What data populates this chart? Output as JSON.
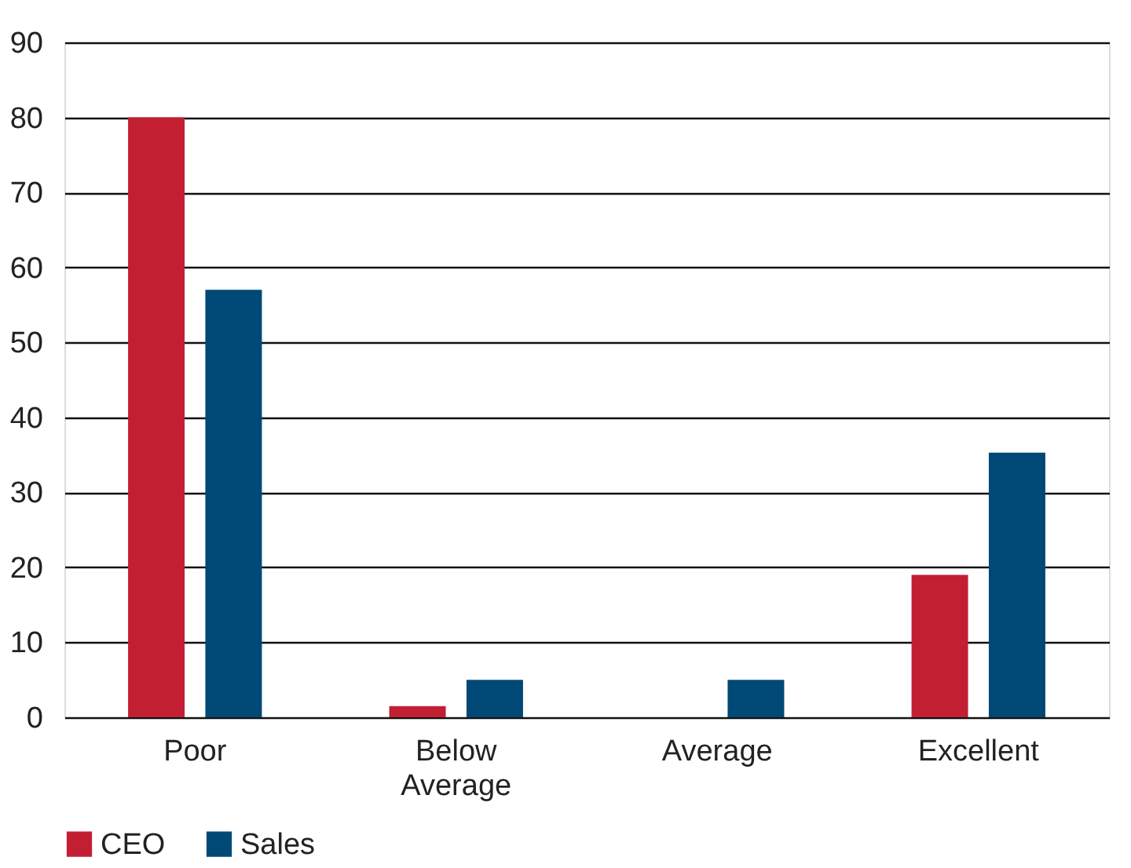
{
  "chart_data": {
    "type": "bar",
    "categories": [
      "Poor",
      "Below Average",
      "Average",
      "Excellent"
    ],
    "series": [
      {
        "name": "CEO",
        "color": "#c21f32",
        "values": [
          80,
          1.5,
          0,
          19
        ]
      },
      {
        "name": "Sales",
        "color": "#004876",
        "values": [
          57,
          5,
          5,
          35.3
        ]
      }
    ],
    "ylim": [
      0,
      90
    ],
    "yticks": [
      0,
      10,
      20,
      30,
      40,
      50,
      60,
      70,
      80,
      90
    ],
    "grid": "y",
    "legend": "bottom"
  }
}
